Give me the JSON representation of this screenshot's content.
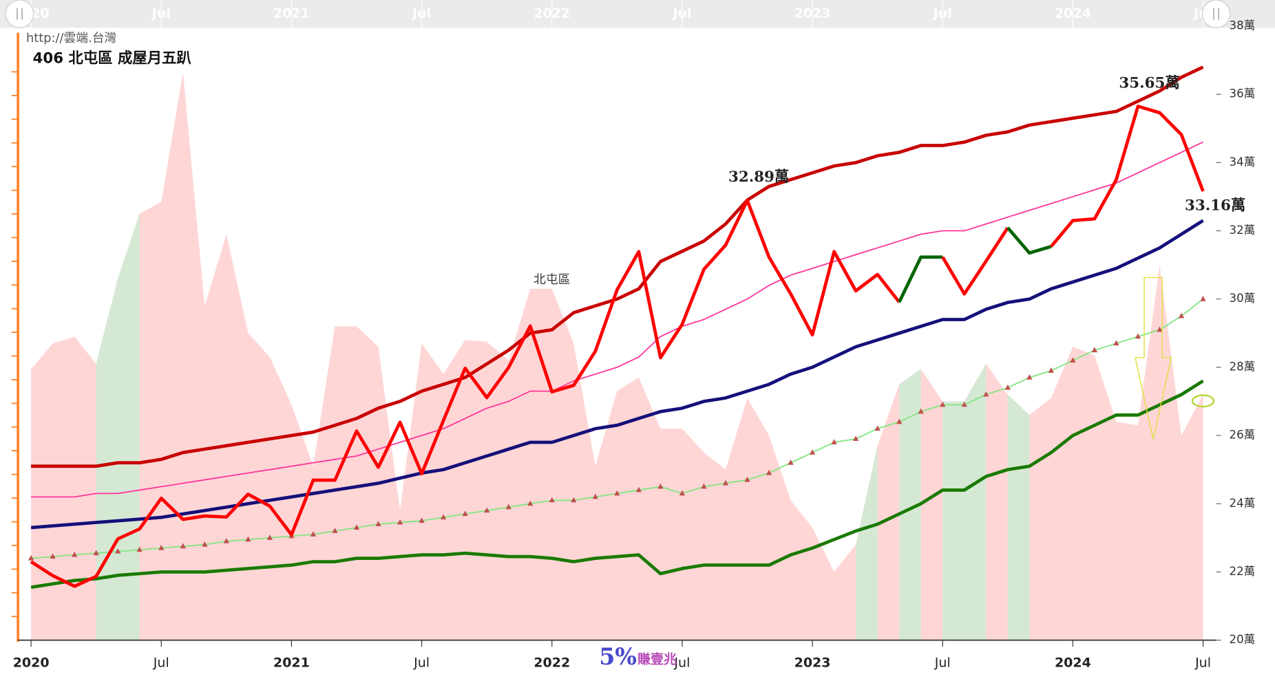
{
  "chart_data": {
    "type": "line",
    "subtitle": "http://雲端.台灣",
    "title": "406 北屯區 成屋月五趴",
    "watermark_big": "5%",
    "watermark_small": "賺壹兆",
    "x": [
      "2020-01",
      "2020-02",
      "2020-03",
      "2020-04",
      "2020-05",
      "2020-06",
      "2020-07",
      "2020-08",
      "2020-09",
      "2020-10",
      "2020-11",
      "2020-12",
      "2021-01",
      "2021-02",
      "2021-03",
      "2021-04",
      "2021-05",
      "2021-06",
      "2021-07",
      "2021-08",
      "2021-09",
      "2021-10",
      "2021-11",
      "2021-12",
      "2022-01",
      "2022-02",
      "2022-03",
      "2022-04",
      "2022-05",
      "2022-06",
      "2022-07",
      "2022-08",
      "2022-09",
      "2022-10",
      "2022-11",
      "2022-12",
      "2023-01",
      "2023-02",
      "2023-03",
      "2023-04",
      "2023-05",
      "2023-06",
      "2023-07",
      "2023-08",
      "2023-09",
      "2023-10",
      "2023-11",
      "2023-12",
      "2024-01",
      "2024-02",
      "2024-03",
      "2024-04",
      "2024-05",
      "2024-06",
      "2024-07"
    ],
    "xticks": [
      {
        "value": "2020-01",
        "label": "2020"
      },
      {
        "value": "2020-07",
        "label": "Jul"
      },
      {
        "value": "2021-01",
        "label": "2021"
      },
      {
        "value": "2021-07",
        "label": "Jul"
      },
      {
        "value": "2022-01",
        "label": "2022"
      },
      {
        "value": "2022-07",
        "label": "Jul"
      },
      {
        "value": "2023-01",
        "label": "2023"
      },
      {
        "value": "2023-07",
        "label": "Jul"
      },
      {
        "value": "2024-01",
        "label": "2024"
      },
      {
        "value": "2024-07",
        "label": "Jul"
      }
    ],
    "ylim": [
      20,
      38
    ],
    "yticks": [
      {
        "value": 20,
        "label": "20萬"
      },
      {
        "value": 22,
        "label": "22萬"
      },
      {
        "value": 24,
        "label": "24萬"
      },
      {
        "value": 26,
        "label": "26萬"
      },
      {
        "value": 28,
        "label": "28萬"
      },
      {
        "value": 30,
        "label": "30萬"
      },
      {
        "value": 32,
        "label": "32萬"
      },
      {
        "value": 34,
        "label": "34萬"
      },
      {
        "value": 36,
        "label": "36萬"
      },
      {
        "value": 38,
        "label": "38萬"
      }
    ],
    "area": {
      "color": "#ffd6d6",
      "values": [
        27.95,
        28.7,
        28.9,
        28.1,
        30.6,
        32.5,
        32.85,
        36.65,
        29.8,
        31.9,
        29.0,
        28.3,
        26.9,
        25.1,
        29.2,
        29.2,
        28.6,
        23.8,
        28.7,
        27.8,
        28.8,
        28.75,
        28.2,
        30.3,
        30.3,
        28.7,
        25.1,
        27.3,
        27.7,
        26.2,
        26.2,
        25.5,
        25.0,
        27.1,
        26.0,
        24.1,
        23.3,
        22.0,
        22.8,
        25.7,
        27.5,
        27.95,
        27.0,
        27.0,
        28.1,
        27.2,
        26.6,
        27.1,
        28.6,
        28.35,
        26.4,
        26.3,
        31.0,
        26.0,
        27.2
      ],
      "highlights": [
        {
          "from": "2020-04",
          "to": "2020-06",
          "color": "#d5e8d4"
        },
        {
          "from": "2023-03",
          "to": "2023-04",
          "color": "#d5e8d4"
        },
        {
          "from": "2023-05",
          "to": "2023-06",
          "color": "#d5e8d4"
        },
        {
          "from": "2023-07",
          "to": "2023-09",
          "color": "#d5e8d4"
        },
        {
          "from": "2023-10",
          "to": "2023-11",
          "color": "#d5e8d4"
        }
      ]
    },
    "series": [
      {
        "color": "#c80000",
        "width": 4,
        "values": [
          25.1,
          25.1,
          25.1,
          25.1,
          25.2,
          25.2,
          25.3,
          25.5,
          25.6,
          25.7,
          25.8,
          25.9,
          26.0,
          26.1,
          26.3,
          26.5,
          26.8,
          27.0,
          27.3,
          27.5,
          27.7,
          28.1,
          28.5,
          29.0,
          29.1,
          29.6,
          29.8,
          30.0,
          30.3,
          31.1,
          31.4,
          31.7,
          32.2,
          32.9,
          33.3,
          33.5,
          33.7,
          33.9,
          34.0,
          34.2,
          34.3,
          34.5,
          34.5,
          34.6,
          34.8,
          34.9,
          35.1,
          35.2,
          35.3,
          35.4,
          35.5,
          35.8,
          36.1,
          36.5,
          36.8
        ]
      },
      {
        "color": "#ff3399",
        "width": 1.5,
        "values": [
          24.2,
          24.2,
          24.2,
          24.3,
          24.3,
          24.4,
          24.5,
          24.6,
          24.7,
          24.8,
          24.9,
          25.0,
          25.1,
          25.2,
          25.3,
          25.4,
          25.6,
          25.8,
          26.0,
          26.2,
          26.5,
          26.8,
          27.0,
          27.3,
          27.3,
          27.6,
          27.8,
          28.0,
          28.3,
          28.9,
          29.2,
          29.4,
          29.7,
          30.0,
          30.4,
          30.7,
          30.9,
          31.1,
          31.3,
          31.5,
          31.7,
          31.9,
          32.0,
          32.0,
          32.2,
          32.4,
          32.6,
          32.8,
          33.0,
          33.2,
          33.4,
          33.7,
          34.0,
          34.3,
          34.6
        ]
      },
      {
        "color": "#14107a",
        "width": 4,
        "values": [
          23.3,
          23.35,
          23.4,
          23.45,
          23.5,
          23.55,
          23.6,
          23.7,
          23.8,
          23.9,
          24.0,
          24.1,
          24.2,
          24.3,
          24.4,
          24.5,
          24.6,
          24.75,
          24.9,
          25.0,
          25.2,
          25.4,
          25.6,
          25.8,
          25.8,
          26.0,
          26.2,
          26.3,
          26.5,
          26.7,
          26.8,
          27.0,
          27.1,
          27.3,
          27.5,
          27.8,
          28.0,
          28.3,
          28.6,
          28.8,
          29.0,
          29.2,
          29.4,
          29.4,
          29.7,
          29.9,
          30.0,
          30.3,
          30.5,
          30.7,
          30.9,
          31.2,
          31.5,
          31.9,
          32.3
        ]
      },
      {
        "color": "#7fe57f",
        "width": 1.5,
        "marker": "triangle",
        "marker_color": "#c0504d",
        "values": [
          22.4,
          22.45,
          22.5,
          22.55,
          22.6,
          22.65,
          22.7,
          22.75,
          22.8,
          22.9,
          22.95,
          23.0,
          23.05,
          23.1,
          23.2,
          23.3,
          23.4,
          23.45,
          23.5,
          23.6,
          23.7,
          23.8,
          23.9,
          24.0,
          24.1,
          24.1,
          24.2,
          24.3,
          24.4,
          24.5,
          24.3,
          24.5,
          24.6,
          24.7,
          24.9,
          25.2,
          25.5,
          25.8,
          25.9,
          26.2,
          26.4,
          26.7,
          26.9,
          26.9,
          27.2,
          27.4,
          27.7,
          27.9,
          28.2,
          28.5,
          28.7,
          28.9,
          29.1,
          29.5,
          30.0
        ]
      },
      {
        "color": "#1a7a00",
        "width": 4,
        "values": [
          21.55,
          21.65,
          21.75,
          21.8,
          21.9,
          21.95,
          22.0,
          22.0,
          22.0,
          22.05,
          22.1,
          22.15,
          22.2,
          22.3,
          22.3,
          22.4,
          22.4,
          22.45,
          22.5,
          22.5,
          22.55,
          22.5,
          22.45,
          22.45,
          22.4,
          22.3,
          22.4,
          22.45,
          22.5,
          21.95,
          22.1,
          22.2,
          22.2,
          22.2,
          22.2,
          22.5,
          22.7,
          22.95,
          23.2,
          23.4,
          23.7,
          24.0,
          24.4,
          24.4,
          24.8,
          25.0,
          25.1,
          25.5,
          26.0,
          26.3,
          26.6,
          26.6,
          26.9,
          27.2,
          27.6
        ]
      },
      {
        "name": "北屯區",
        "color": "#ff0000",
        "width": 4,
        "values": [
          22.3,
          21.89,
          21.58,
          21.87,
          22.97,
          23.26,
          24.16,
          23.54,
          23.64,
          23.61,
          24.28,
          23.93,
          23.09,
          24.69,
          24.69,
          26.13,
          25.07,
          26.39,
          24.88,
          26.44,
          27.97,
          27.11,
          27.99,
          29.21,
          27.28,
          27.47,
          28.47,
          30.27,
          31.39,
          28.28,
          29.26,
          30.87,
          31.58,
          32.89,
          31.23,
          30.15,
          28.95,
          31.39,
          30.24,
          30.72,
          29.91,
          31.23,
          31.23,
          30.15,
          31.11,
          32.09,
          31.35,
          31.54,
          32.3,
          32.35,
          33.5,
          35.65,
          35.46,
          34.82,
          33.16
        ],
        "segments": [
          {
            "from": "2023-05",
            "to": "2023-07",
            "color": "#006400"
          },
          {
            "from": "2023-10",
            "to": "2023-12",
            "color": "#006400"
          }
        ]
      }
    ],
    "annotations": [
      {
        "text": "32.89萬",
        "x": "2022-10",
        "y": 32.89
      },
      {
        "text": "35.65萬",
        "x": "2024-04",
        "y": 35.65
      },
      {
        "text": "33.16萬",
        "x": "2024-07",
        "y": 33.16
      }
    ]
  }
}
